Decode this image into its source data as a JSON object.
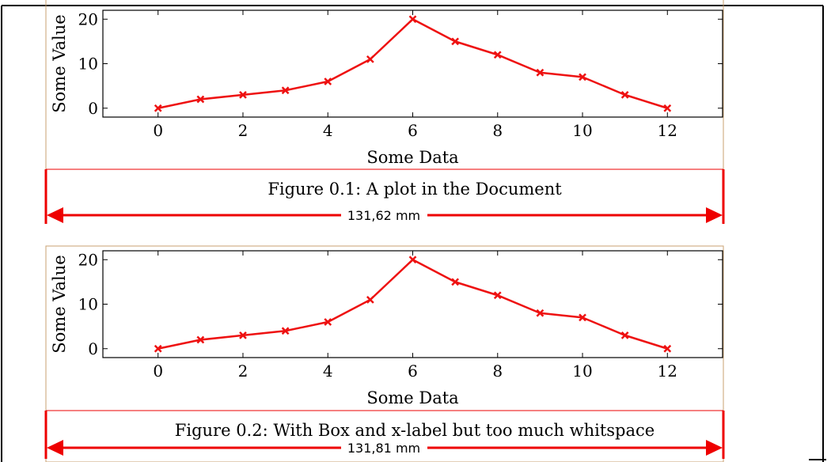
{
  "colors": {
    "series": "#ee1111",
    "frame": "#000000",
    "figure_box": "#c8a070",
    "dimension": "#ee0000"
  },
  "chart_data": [
    {
      "type": "line",
      "title": "",
      "xlabel": "Some Data",
      "ylabel": "Some Value",
      "x": [
        0,
        1,
        2,
        3,
        4,
        5,
        6,
        7,
        8,
        9,
        10,
        11,
        12
      ],
      "series": [
        {
          "name": "",
          "values": [
            0,
            2,
            3,
            4,
            6,
            11,
            20,
            15,
            12,
            8,
            7,
            3,
            0
          ]
        }
      ],
      "xlim": [
        -1.3,
        13.3
      ],
      "ylim": [
        -2,
        22
      ],
      "xticks": [
        0,
        2,
        4,
        6,
        8,
        10,
        12
      ],
      "yticks": [
        0,
        10,
        20
      ],
      "marker": "x",
      "grid": false
    },
    {
      "type": "line",
      "title": "",
      "xlabel": "Some Data",
      "ylabel": "Some Value",
      "x": [
        0,
        1,
        2,
        3,
        4,
        5,
        6,
        7,
        8,
        9,
        10,
        11,
        12
      ],
      "series": [
        {
          "name": "",
          "values": [
            0,
            2,
            3,
            4,
            6,
            11,
            20,
            15,
            12,
            8,
            7,
            3,
            0
          ]
        }
      ],
      "xlim": [
        -1.3,
        13.3
      ],
      "ylim": [
        -2,
        22
      ],
      "xticks": [
        0,
        2,
        4,
        6,
        8,
        10,
        12
      ],
      "yticks": [
        0,
        10,
        20
      ],
      "marker": "x",
      "grid": false
    }
  ],
  "figures": [
    {
      "caption": "Figure 0.1: A plot in the Document",
      "width_label": "131,62 mm"
    },
    {
      "caption": "Figure 0.2: With Box and x-label but too much whitspace",
      "width_label": "131,81 mm"
    }
  ]
}
